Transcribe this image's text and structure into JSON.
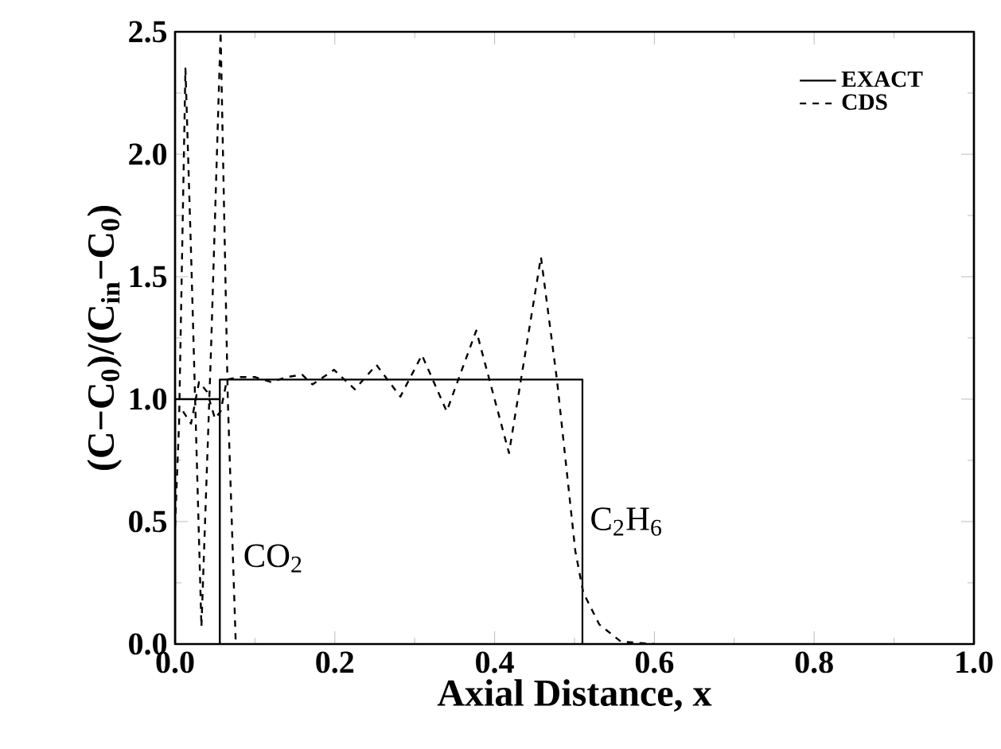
{
  "chart_data": {
    "type": "line",
    "xlabel": "Axial Distance, x",
    "ylabel": "(C−C$_{0}$)/(C$_{in}$−C$_{0}$)",
    "xlim": [
      0,
      1
    ],
    "ylim": [
      0,
      2.5
    ],
    "xticks": [
      {
        "value": 0,
        "label": "0.0"
      },
      {
        "value": 0.2,
        "label": "0.2"
      },
      {
        "value": 0.4,
        "label": "0.4"
      },
      {
        "value": 0.6,
        "label": "0.6"
      },
      {
        "value": 0.8,
        "label": "0.8"
      },
      {
        "value": 1,
        "label": "1.0"
      }
    ],
    "yticks": [
      {
        "value": 0,
        "label": "0.0"
      },
      {
        "value": 0.5,
        "label": "0.5"
      },
      {
        "value": 1,
        "label": "1.0"
      },
      {
        "value": 1.5,
        "label": "1.5"
      },
      {
        "value": 2,
        "label": "2.0"
      },
      {
        "value": 2.5,
        "label": "2.5"
      }
    ],
    "legend": "top right",
    "grid": false,
    "marker": "none",
    "series": [
      {
        "name": "EXACT",
        "color": "#000000",
        "line_style": "solid",
        "x": [
          0,
          0,
          0.056,
          0.056,
          0.056,
          0.51,
          0.51
        ],
        "values": [
          0,
          1.0,
          1.0,
          0,
          1.08,
          1.08,
          0
        ]
      },
      {
        "name": "CDS",
        "color": "#000000",
        "line_style": "dashed",
        "x": [
          0.0,
          0.005,
          0.013,
          0.02,
          0.033,
          0.045,
          0.057,
          0.066,
          0.076
        ],
        "values": [
          0.48,
          0.9,
          2.35,
          1.6,
          0.07,
          1.2,
          2.5,
          1.0,
          0.0
        ]
      },
      {
        "color": "#000000",
        "line_style": "dashed",
        "x": [
          0.01,
          0.02,
          0.03,
          0.04,
          0.05,
          0.057,
          0.065,
          0.08,
          0.1,
          0.12,
          0.14,
          0.159,
          0.172,
          0.199,
          0.225,
          0.252,
          0.282,
          0.309,
          0.34,
          0.377,
          0.418,
          0.458,
          0.478,
          0.501,
          0.511,
          0.531,
          0.558,
          0.6
        ],
        "values": [
          0.95,
          0.9,
          1.07,
          1.03,
          0.92,
          0.95,
          1.08,
          1.09,
          1.09,
          1.07,
          1.09,
          1.1,
          1.06,
          1.12,
          1.04,
          1.14,
          1.01,
          1.18,
          0.95,
          1.28,
          0.78,
          1.58,
          1.08,
          0.38,
          0.21,
          0.08,
          0.01,
          0.0
        ]
      }
    ],
    "annotations": [
      {
        "text": "CO$_{2}$",
        "x": 0.076,
        "y": 0.35
      },
      {
        "text": "C$_{2}$H$_{6}$",
        "x": 0.51,
        "y": 0.5
      }
    ]
  }
}
